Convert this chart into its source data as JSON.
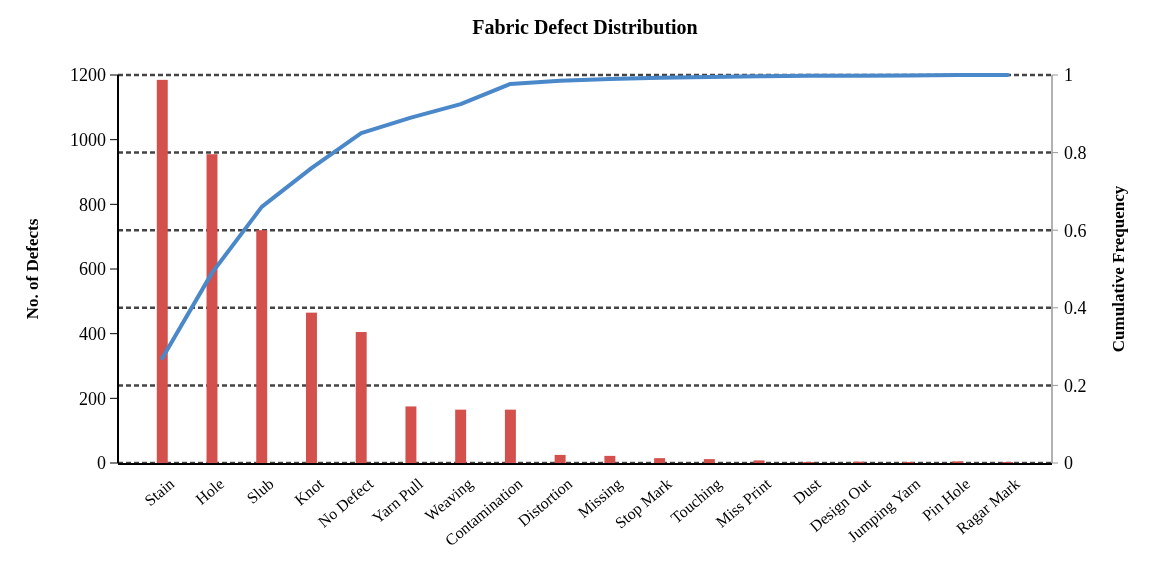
{
  "chart_data": {
    "type": "bar",
    "title": "Fabric Defect Distribution",
    "ylabel": "No. of Defects",
    "y2label": "Cumulative Frequency",
    "categories": [
      "Stain",
      "Hole",
      "Slub",
      "Knot",
      "No Defect",
      "Yarn Pull",
      "Weaving",
      "Contamination",
      "Distortion",
      "Missing",
      "Stop Mark",
      "Touching",
      "Miss Print",
      "Dust",
      "Design Out",
      "Jumping Yarn",
      "Pin Hole",
      "Ragar Mark"
    ],
    "series": [
      {
        "color": "#d3504c",
        "values": [
          1185,
          955,
          720,
          465,
          405,
          175,
          165,
          165,
          25,
          22,
          15,
          12,
          8,
          3,
          4,
          3,
          5,
          3
        ]
      },
      {
        "type": "line",
        "axis": "y2",
        "color": "#4a88c9",
        "values": [
          0.27,
          0.49,
          0.66,
          0.76,
          0.85,
          0.89,
          0.925,
          0.977,
          0.985,
          0.99,
          0.993,
          0.995,
          0.997,
          0.998,
          0.998,
          0.999,
          1,
          1
        ]
      }
    ],
    "ylim": [
      0,
      1200
    ],
    "yticks": [
      0,
      200,
      400,
      600,
      800,
      1000,
      1200
    ],
    "y2lim": [
      0,
      1
    ],
    "y2ticks": [
      0,
      0.2,
      0.4,
      0.6,
      0.8,
      1
    ],
    "grid": true,
    "marker": "none",
    "line_style": "solid"
  }
}
